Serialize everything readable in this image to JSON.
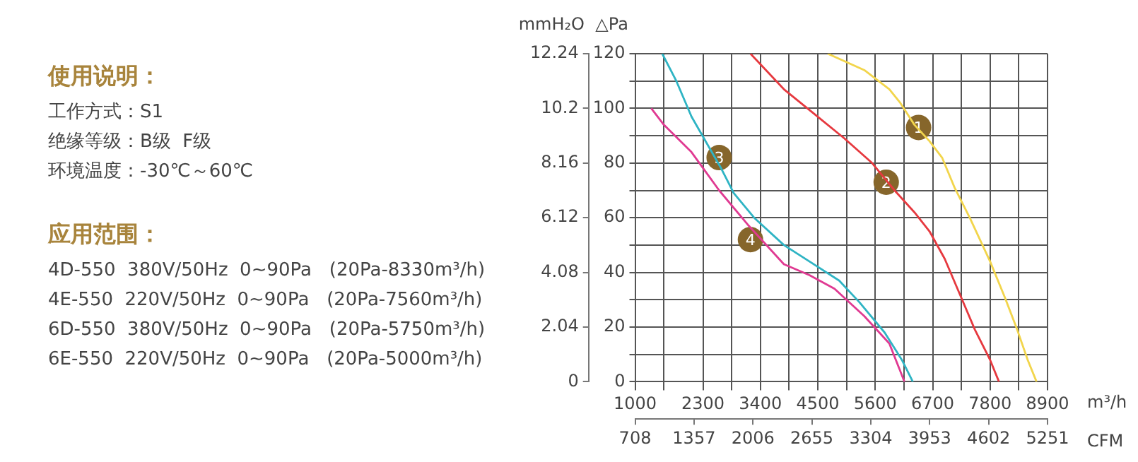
{
  "chart_data": [
    {
      "type": "other",
      "title": "使用说明：",
      "annotations": [
        "工作方式：S1",
        "绝缘等级：B级  F级",
        "环境温度：-30℃～60℃"
      ]
    },
    {
      "type": "other",
      "title": "应用范围：",
      "annotations": [
        "4D-550  380V/50Hz  0~90Pa   (20Pa-8330m³/h)",
        "4E-550  220V/50Hz  0~90Pa   (20Pa-7560m³/h)",
        "6D-550  380V/50Hz  0~90Pa   (20Pa-5750m³/h)",
        "6E-550  220V/50Hz  0~90Pa   (20Pa-5000m³/h)"
      ]
    },
    {
      "type": "line",
      "xlabel": "m³/h",
      "x2label": "CFM",
      "ylabel": "△Pa",
      "y2label": "mmH₂O",
      "xlim": [
        1000,
        8900
      ],
      "xticks": [
        1000,
        {
          "value": 1550,
          "label": null
        },
        2300,
        {
          "value": 2850,
          "label": null
        },
        3400,
        {
          "value": 3950,
          "label": null
        },
        4500,
        {
          "value": 5050,
          "label": null
        },
        5600,
        {
          "value": 6150,
          "label": null
        },
        6700,
        {
          "value": 7250,
          "label": null
        },
        7800,
        {
          "value": 8350,
          "label": null
        },
        8900
      ],
      "x2lim": [
        708,
        5251
      ],
      "x2ticks": [
        708,
        1357,
        2006,
        2655,
        3304,
        3953,
        4602,
        5251
      ],
      "ylim": [
        0,
        120
      ],
      "yticks": [
        0,
        {
          "value": 10,
          "label": null
        },
        20,
        {
          "value": 30,
          "label": null
        },
        40,
        {
          "value": 50,
          "label": null
        },
        60,
        {
          "value": 70,
          "label": null
        },
        80,
        {
          "value": 90,
          "label": null
        },
        100,
        {
          "value": 110,
          "label": null
        },
        120
      ],
      "y2lim": [
        0,
        12.24
      ],
      "y2ticks": [
        0,
        2.04,
        4.08,
        6.12,
        8.16,
        10.2,
        12.24
      ],
      "grid": true,
      "legend": false,
      "marker": "none",
      "line_style": "solid",
      "series": [
        {
          "color": "#f2d54c",
          "x": [
            4690,
            5390,
            5870,
            6080,
            6350,
            6640,
            6880,
            7120,
            7410,
            7800,
            8080,
            8320,
            8520,
            8690
          ],
          "values": [
            120,
            114,
            107,
            102,
            94,
            88,
            82,
            71,
            60,
            44,
            31,
            19,
            8,
            0
          ]
        },
        {
          "color": "#e6393f",
          "x": [
            3210,
            3850,
            4430,
            5010,
            5540,
            5970,
            6350,
            6640,
            6930,
            7220,
            7510,
            7800,
            7970
          ],
          "values": [
            120,
            107,
            98,
            89,
            80,
            70,
            62,
            55,
            45,
            32,
            19,
            8,
            0
          ]
        },
        {
          "color": "#2fb4c4",
          "x": [
            1520,
            1790,
            2080,
            2320,
            2650,
            2890,
            3280,
            3850,
            4340,
            4910,
            5300,
            5780,
            6110,
            6320
          ],
          "values": [
            120,
            110,
            97,
            89,
            78,
            69,
            60,
            50,
            44,
            37,
            29,
            18,
            8,
            0
          ]
        },
        {
          "color": "#e03a92",
          "x": [
            1310,
            1550,
            2080,
            2610,
            3180,
            3850,
            4340,
            4820,
            5390,
            5870,
            6160
          ],
          "values": [
            100,
            94,
            84,
            70,
            57,
            43,
            39,
            34,
            24,
            14,
            0
          ]
        }
      ],
      "annotations": [
        {
          "text": "1",
          "x": 6430,
          "y": 93
        },
        {
          "text": "2",
          "x": 5810,
          "y": 73
        },
        {
          "text": "3",
          "x": 2610,
          "y": 82
        },
        {
          "text": "4",
          "x": 3210,
          "y": 52
        }
      ]
    }
  ]
}
